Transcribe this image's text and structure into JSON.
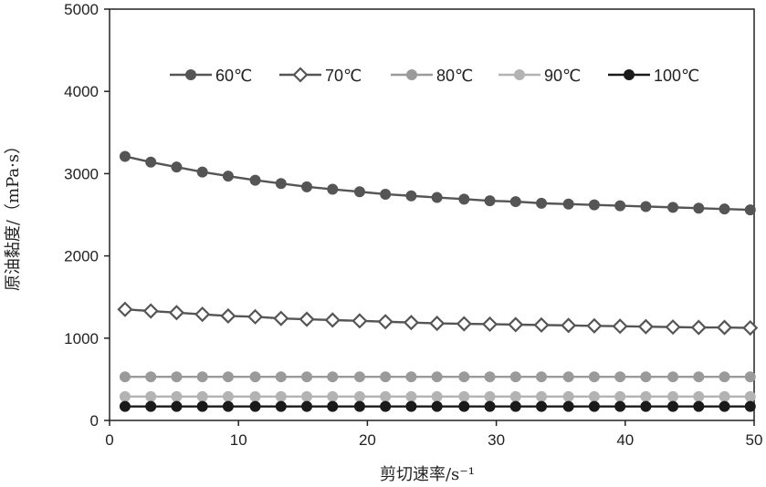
{
  "chart_data": {
    "type": "line",
    "title": "",
    "xlabel": "剪切速率/s⁻¹",
    "ylabel": "原油黏度/（mPa·s）",
    "xlim": [
      0,
      50
    ],
    "ylim": [
      0,
      5000
    ],
    "xticks": [
      0,
      10,
      20,
      30,
      40,
      50
    ],
    "yticks": [
      0,
      1000,
      2000,
      3000,
      4000,
      5000
    ],
    "grid": false,
    "legend_position": "top",
    "x": [
      1.2,
      3.2,
      5.2,
      7.2,
      9.2,
      11.3,
      13.3,
      15.3,
      17.3,
      19.4,
      21.4,
      23.4,
      25.4,
      27.5,
      29.5,
      31.5,
      33.5,
      35.6,
      37.6,
      39.6,
      41.6,
      43.7,
      45.7,
      47.7,
      49.7
    ],
    "series": [
      {
        "name": "60℃",
        "marker": "circle-filled",
        "color": "#555555",
        "values": [
          3210,
          3140,
          3080,
          3020,
          2970,
          2920,
          2880,
          2840,
          2810,
          2780,
          2750,
          2730,
          2710,
          2690,
          2670,
          2660,
          2640,
          2630,
          2620,
          2610,
          2600,
          2590,
          2580,
          2570,
          2560
        ]
      },
      {
        "name": "70℃",
        "marker": "diamond-open",
        "color": "#555555",
        "values": [
          1350,
          1330,
          1310,
          1290,
          1270,
          1260,
          1240,
          1230,
          1220,
          1210,
          1200,
          1190,
          1180,
          1175,
          1170,
          1165,
          1160,
          1155,
          1150,
          1145,
          1140,
          1135,
          1130,
          1130,
          1125
        ]
      },
      {
        "name": "80℃",
        "marker": "circle-filled",
        "color": "#9a9a9a",
        "values": [
          530,
          530,
          530,
          530,
          530,
          530,
          530,
          530,
          530,
          530,
          530,
          530,
          530,
          530,
          530,
          530,
          530,
          530,
          530,
          530,
          530,
          530,
          530,
          530,
          530
        ]
      },
      {
        "name": "90℃",
        "marker": "circle-filled",
        "color": "#b3b3b3",
        "values": [
          290,
          290,
          290,
          290,
          290,
          290,
          290,
          290,
          290,
          290,
          290,
          290,
          290,
          290,
          290,
          290,
          290,
          290,
          290,
          290,
          290,
          290,
          290,
          290,
          290
        ]
      },
      {
        "name": "100℃",
        "marker": "circle-filled",
        "color": "#1a1a1a",
        "values": [
          170,
          170,
          170,
          170,
          170,
          170,
          170,
          170,
          170,
          170,
          170,
          170,
          170,
          170,
          170,
          170,
          170,
          170,
          170,
          170,
          170,
          170,
          170,
          170,
          170
        ]
      }
    ]
  }
}
